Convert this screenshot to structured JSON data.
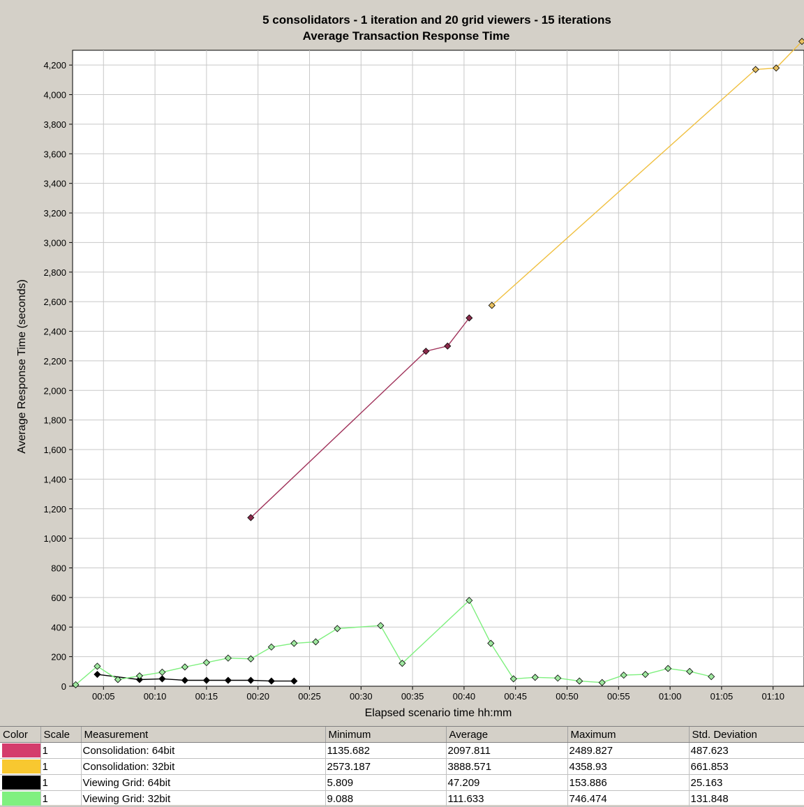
{
  "chart_data": {
    "type": "line",
    "title": "5 consolidators - 1 iteration and 20 grid viewers - 15 iterations",
    "subtitle": "Average Transaction Response Time",
    "xlabel": "Elapsed scenario time hh:mm",
    "ylabel": "Average Response Time (seconds)",
    "ylim": [
      0,
      4300
    ],
    "y_ticks": [
      0,
      200,
      400,
      600,
      800,
      1000,
      1200,
      1400,
      1600,
      1800,
      2000,
      2200,
      2400,
      2600,
      2800,
      3000,
      3200,
      3400,
      3600,
      3800,
      4000,
      4200
    ],
    "y_tick_labels": [
      "0",
      "200",
      "400",
      "600",
      "800",
      "1,000",
      "1,200",
      "1,400",
      "1,600",
      "1,800",
      "2,000",
      "2,200",
      "2,400",
      "2,600",
      "2,800",
      "3,000",
      "3,200",
      "3,400",
      "3,600",
      "3,800",
      "4,000",
      "4,200"
    ],
    "x_unit": "minutes",
    "xlim": [
      2,
      73
    ],
    "x_ticks": [
      5,
      10,
      15,
      20,
      25,
      30,
      35,
      40,
      45,
      50,
      55,
      60,
      65,
      70
    ],
    "x_tick_labels": [
      "00:05",
      "00:10",
      "00:15",
      "00:20",
      "00:25",
      "00:30",
      "00:35",
      "00:40",
      "00:45",
      "00:50",
      "00:55",
      "01:00",
      "01:05",
      "01:10"
    ],
    "grid": true,
    "series": [
      {
        "name": "Consolidation: 64bit",
        "color": "#a0325a",
        "marker_fill": "#8a2a4a",
        "x": [
          19.3,
          36.3,
          38.4,
          40.5
        ],
        "y": [
          1140,
          2265,
          2300,
          2490
        ]
      },
      {
        "name": "Consolidation: 32bit",
        "color": "#f0c040",
        "marker_fill": "#e8c060",
        "x": [
          42.7,
          68.3,
          70.3,
          72.8
        ],
        "y": [
          2575,
          4170,
          4180,
          4360
        ]
      },
      {
        "name": "Viewing Grid: 64bit",
        "color": "#000000",
        "marker_fill": "#000000",
        "x": [
          4.4,
          8.5,
          10.7,
          12.9,
          15.0,
          17.1,
          19.3,
          21.3,
          23.5
        ],
        "y": [
          80,
          45,
          50,
          40,
          40,
          40,
          40,
          35,
          35
        ]
      },
      {
        "name": "Viewing Grid: 32bit",
        "color": "#7ef07e",
        "marker_fill": "#a0e8a0",
        "x": [
          2.3,
          4.4,
          6.4,
          8.5,
          10.7,
          12.9,
          15.0,
          17.1,
          19.3,
          21.3,
          23.5,
          25.6,
          27.7,
          31.9,
          34.0,
          40.5,
          42.6,
          44.8,
          46.9,
          49.1,
          51.2,
          53.4,
          55.5,
          57.6,
          59.8,
          61.9,
          64.0
        ],
        "y": [
          10,
          135,
          45,
          70,
          95,
          130,
          160,
          190,
          185,
          265,
          290,
          300,
          390,
          410,
          155,
          580,
          290,
          50,
          60,
          55,
          35,
          25,
          75,
          80,
          120,
          100,
          65
        ]
      }
    ]
  },
  "legend": {
    "headers": [
      "Color",
      "Scale",
      "Measurement",
      "Minimum",
      "Average",
      "Maximum",
      "Std. Deviation"
    ],
    "rows": [
      {
        "color": "#d43c6c",
        "scale": "1",
        "measurement": "Consolidation: 64bit",
        "minimum": "1135.682",
        "average": "2097.811",
        "maximum": "2489.827",
        "std": "487.623"
      },
      {
        "color": "#f8c830",
        "scale": "1",
        "measurement": "Consolidation: 32bit",
        "minimum": "2573.187",
        "average": "3888.571",
        "maximum": "4358.93",
        "std": "661.853"
      },
      {
        "color": "#000000",
        "scale": "1",
        "measurement": "Viewing Grid: 64bit",
        "minimum": "5.809",
        "average": "47.209",
        "maximum": "153.886",
        "std": "25.163"
      },
      {
        "color": "#80f080",
        "scale": "1",
        "measurement": "Viewing Grid: 32bit",
        "minimum": "9.088",
        "average": "111.633",
        "maximum": "746.474",
        "std": "131.848"
      }
    ]
  }
}
